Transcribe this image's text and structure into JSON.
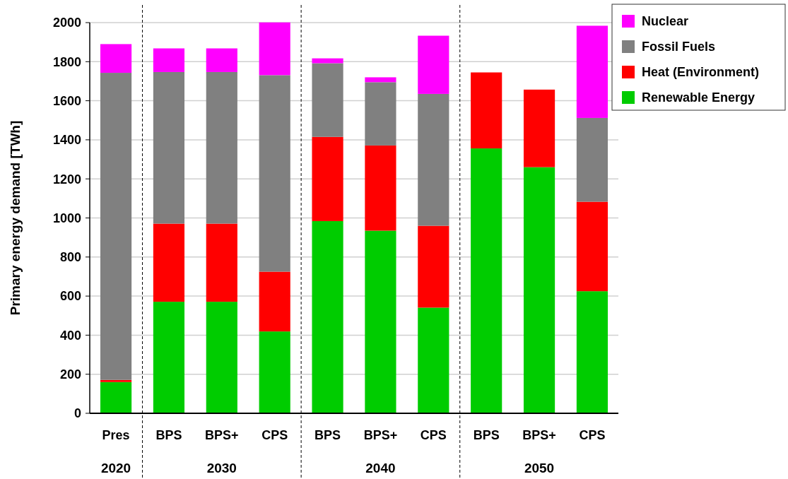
{
  "chart_data": {
    "type": "bar",
    "stacked": true,
    "ylabel": "Primary energy demand [TWh]",
    "categories": [
      "Pres",
      "BPS",
      "BPS+",
      "CPS",
      "BPS",
      "BPS+",
      "CPS",
      "BPS",
      "BPS+",
      "CPS"
    ],
    "series": [
      {
        "name": "Renewable Energy",
        "color": "#00cc00",
        "values": [
          160,
          571,
          571,
          419,
          984,
          935,
          541,
          1356,
          1260,
          625
        ]
      },
      {
        "name": "Heat (Environment)",
        "color": "#ff0000",
        "values": [
          11,
          400,
          400,
          306,
          431,
          436,
          419,
          389,
          397,
          458
        ]
      },
      {
        "name": "Fossil Fuels",
        "color": "#808080",
        "values": [
          1572,
          776,
          776,
          1006,
          377,
          324,
          675,
          0,
          0,
          429
        ]
      },
      {
        "name": "Nuclear",
        "color": "#ff00ff",
        "values": [
          147,
          121,
          121,
          270,
          25,
          25,
          298,
          0,
          0,
          472
        ]
      }
    ],
    "ylim": [
      0,
      2000
    ],
    "yticks": [
      0,
      200,
      400,
      600,
      800,
      1000,
      1200,
      1400,
      1600,
      1800,
      2000
    ],
    "grid": "y",
    "legend": "top right",
    "annotations": [
      "2020",
      "2030",
      "2040",
      "2050"
    ]
  }
}
